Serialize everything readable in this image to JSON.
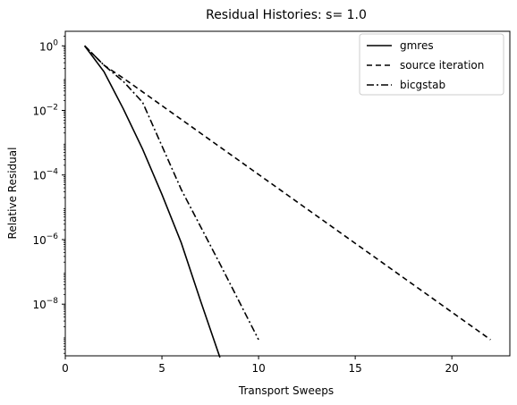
{
  "chart_data": {
    "type": "line",
    "title": "Residual Histories: s= 1.0",
    "xlabel": "Transport Sweeps",
    "ylabel": "Relative Residual",
    "xlim": [
      0,
      23
    ],
    "ylim_log10": [
      -9.6,
      0.45
    ],
    "yscale": "log",
    "xticks": [
      0,
      5,
      10,
      15,
      20
    ],
    "xtick_labels": [
      "0",
      "5",
      "10",
      "15",
      "20"
    ],
    "yticks_log10": [
      0,
      -2,
      -4,
      -6,
      -8
    ],
    "ytick_labels": [
      {
        "base": "10",
        "exp": "0"
      },
      {
        "base": "10",
        "exp": "−2"
      },
      {
        "base": "10",
        "exp": "−4"
      },
      {
        "base": "10",
        "exp": "−6"
      },
      {
        "base": "10",
        "exp": "−8"
      }
    ],
    "grid": false,
    "legend_position": "top-right",
    "series": [
      {
        "name": "gmres",
        "style": "solid",
        "color": "#000000",
        "x": [
          1,
          2,
          3,
          4,
          5,
          6,
          7,
          8
        ],
        "y_log10": [
          0,
          -0.8,
          -1.95,
          -3.2,
          -4.6,
          -6.1,
          -7.9,
          -9.65
        ]
      },
      {
        "name": "source iteration",
        "style": "dashed",
        "color": "#000000",
        "x": [
          1,
          2,
          3,
          22
        ],
        "y_log10": [
          0,
          -0.6,
          -1.0,
          -9.1
        ]
      },
      {
        "name": "bicgstab",
        "style": "dashdot",
        "color": "#000000",
        "x": [
          1,
          2,
          3,
          4,
          6,
          8,
          10
        ],
        "y_log10": [
          0,
          -0.6,
          -1.1,
          -1.75,
          -4.45,
          -6.75,
          -9.1
        ]
      }
    ]
  }
}
